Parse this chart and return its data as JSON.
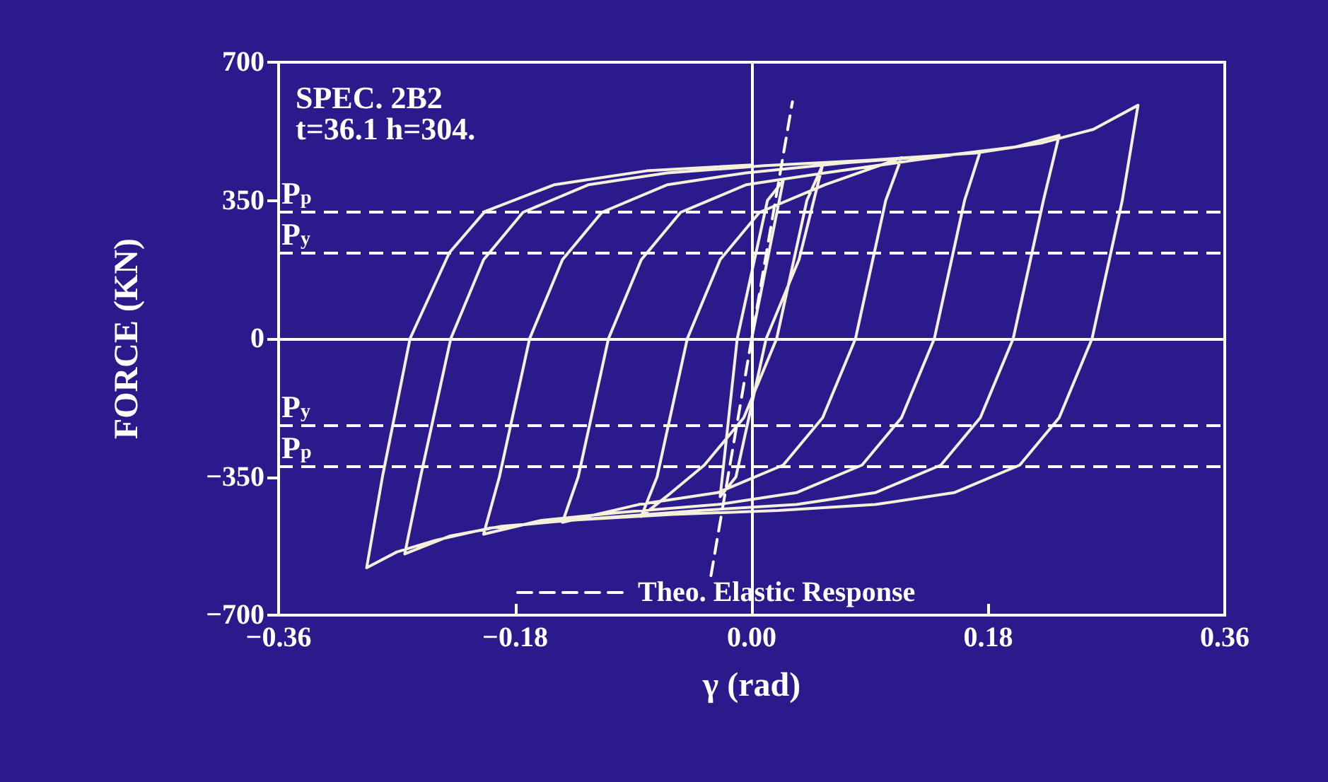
{
  "chart_data": {
    "type": "line",
    "xlabel": "γ (rad)",
    "ylabel": "FORCE (KN)",
    "annotations": [
      "SPEC. 2B2",
      "t=36.1 h=304."
    ],
    "xlim": [
      -0.36,
      0.36
    ],
    "xticks": [
      {
        "value": -0.36,
        "label": "−0.36"
      },
      {
        "value": -0.18,
        "label": "−0.18"
      },
      {
        "value": 0,
        "label": "0.00"
      },
      {
        "value": 0.18,
        "label": "0.18"
      },
      {
        "value": 0.36,
        "label": "0.36"
      }
    ],
    "ylim": [
      -700,
      700
    ],
    "yticks": [
      {
        "value": -700,
        "label": "−700"
      },
      {
        "value": -350,
        "label": "−350"
      },
      0,
      350,
      700
    ],
    "grid": false,
    "legend": "bottom",
    "marker": "none",
    "ref_lines": [
      {
        "axis": "y",
        "value": 322,
        "label": "P$_{p}$",
        "line_style": "dashed",
        "color": "#ffffff"
      },
      {
        "axis": "y",
        "value": 218,
        "label": "P$_{y}$",
        "line_style": "dashed",
        "color": "#ffffff"
      },
      {
        "axis": "y",
        "value": -218,
        "label": "P$_{y}$",
        "line_style": "dashed",
        "color": "#ffffff"
      },
      {
        "axis": "y",
        "value": -322,
        "label": "P$_{p}$",
        "line_style": "dashed",
        "color": "#ffffff"
      },
      {
        "axis": "x",
        "value": 0,
        "line_style": "solid",
        "color": "#ffffff"
      },
      {
        "axis": "y",
        "value": 0,
        "line_style": "solid",
        "color": "#ffffff"
      }
    ],
    "series": [
      {
        "color": "#f5f0dc",
        "line_style": "solid",
        "x": [
          0,
          0.024,
          0.012,
          -0.011,
          -0.024,
          -0.012,
          0.011,
          0.036,
          0.054,
          0.042,
          0.019,
          -0.006,
          -0.036,
          -0.065,
          -0.084,
          -0.072,
          -0.049,
          -0.024,
          0.006,
          0.056,
          0.114,
          0.102,
          0.079,
          0.054,
          0.024,
          -0.026,
          -0.086,
          -0.144,
          -0.132,
          -0.109,
          -0.084,
          -0.054,
          -0.004,
          0.056,
          0.12,
          0.174,
          0.162,
          0.139,
          0.114,
          0.084,
          0.034,
          -0.026,
          -0.1,
          -0.16,
          -0.204,
          -0.192,
          -0.169,
          -0.144,
          -0.114,
          -0.064,
          -0.004,
          0.07,
          0.15,
          0.2,
          0.234,
          0.222,
          0.199,
          0.174,
          0.144,
          0.094,
          0.034,
          -0.04,
          -0.12,
          -0.19,
          -0.23,
          -0.264,
          -0.252,
          -0.229,
          -0.204,
          -0.174,
          -0.124,
          -0.064,
          0.01,
          0.09,
          0.17,
          0.22,
          0.26,
          0.294,
          0.282,
          0.259,
          0.234,
          0.204,
          0.154,
          0.094,
          0.02,
          -0.06,
          -0.14,
          -0.2,
          -0.24,
          -0.27,
          -0.293,
          -0.281,
          -0.26,
          -0.23,
          -0.203,
          -0.15,
          -0.08,
          0
        ],
        "values": [
          0,
          400,
          350,
          0,
          -400,
          -350,
          0,
          200,
          440,
          350,
          0,
          -200,
          -320,
          -400,
          -450,
          -350,
          0,
          200,
          320,
          390,
          458,
          350,
          0,
          -200,
          -320,
          -390,
          -420,
          -465,
          -350,
          0,
          200,
          320,
          390,
          420,
          450,
          475,
          350,
          0,
          -200,
          -320,
          -390,
          -420,
          -440,
          -460,
          -495,
          -350,
          0,
          200,
          320,
          390,
          420,
          445,
          465,
          485,
          515,
          350,
          0,
          -200,
          -320,
          -390,
          -420,
          -435,
          -455,
          -475,
          -500,
          -545,
          -350,
          0,
          200,
          320,
          390,
          420,
          438,
          452,
          470,
          495,
          530,
          591,
          350,
          0,
          -200,
          -320,
          -390,
          -420,
          -435,
          -445,
          -460,
          -480,
          -510,
          -540,
          -580,
          -350,
          0,
          218,
          322,
          390,
          425,
          440
        ]
      },
      {
        "name": "Theo. Elastic Response",
        "color": "#ffffff",
        "line_style": "dashed",
        "x": [
          -0.031,
          0.031
        ],
        "values": [
          -600,
          600
        ]
      }
    ]
  }
}
